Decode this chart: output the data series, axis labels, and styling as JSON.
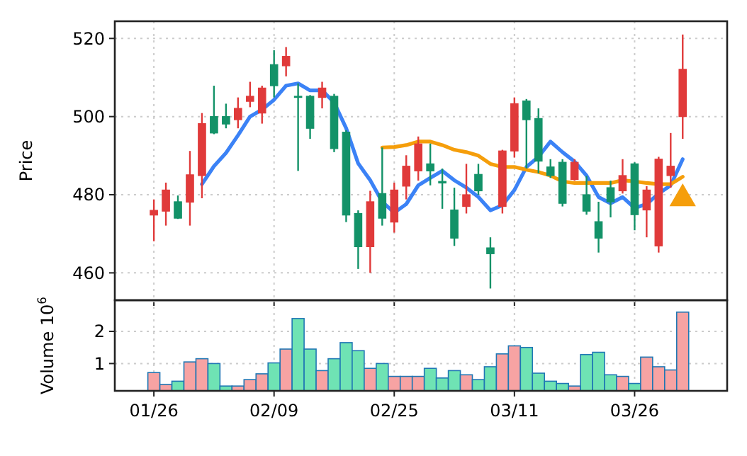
{
  "chart_data": [
    {
      "type": "candlestick",
      "ylabel": "Price",
      "tick_labels": "y",
      "grid": true,
      "ylim": [
        453,
        524.4
      ],
      "yticks": [
        460,
        480,
        500,
        520
      ],
      "categories": [
        null,
        null,
        null,
        null,
        null,
        null,
        null,
        null,
        null,
        null,
        null,
        null,
        null,
        null,
        null,
        null,
        null,
        null,
        null,
        null,
        null,
        null,
        null,
        null,
        null,
        null,
        null,
        null,
        null,
        null,
        null,
        null,
        null,
        null,
        null,
        null,
        null,
        null,
        null,
        null,
        null,
        null,
        null,
        null,
        null
      ],
      "ohlc": [
        [
          474.8,
          478.8,
          468.1,
          476.0
        ],
        [
          475.8,
          483.1,
          472.1,
          481.2
        ],
        [
          478.2,
          479.8,
          473.8,
          474.0
        ],
        [
          478.1,
          491.2,
          472.1,
          485.1
        ],
        [
          484.9,
          500.9,
          479.1,
          498.2
        ],
        [
          500.0,
          507.9,
          495.5,
          495.8
        ],
        [
          500.0,
          503.3,
          497.0,
          498.1
        ],
        [
          499.2,
          504.9,
          497.0,
          502.1
        ],
        [
          503.9,
          508.9,
          502.4,
          505.2
        ],
        [
          500.9,
          507.9,
          498.2,
          507.3
        ],
        [
          513.3,
          517.0,
          504.9,
          507.9
        ],
        [
          513.0,
          517.8,
          510.3,
          515.4
        ],
        [
          505.2,
          508.5,
          486.1,
          504.9
        ],
        [
          505.2,
          505.5,
          494.3,
          497.0
        ],
        [
          504.9,
          508.9,
          502.1,
          507.3
        ],
        [
          505.2,
          505.8,
          490.9,
          491.8
        ],
        [
          496.0,
          496.5,
          473.0,
          474.8
        ],
        [
          475.2,
          476.0,
          461.0,
          466.7
        ],
        [
          466.7,
          481.0,
          460.0,
          478.2
        ],
        [
          480.3,
          492.1,
          472.1,
          474.0
        ],
        [
          473.0,
          483.1,
          470.3,
          481.2
        ],
        [
          482.2,
          490.1,
          478.8,
          487.3
        ],
        [
          486.1,
          494.9,
          483.6,
          493.0
        ],
        [
          487.9,
          493.1,
          482.4,
          486.1
        ],
        [
          483.4,
          486.7,
          476.4,
          483.0
        ],
        [
          476.1,
          481.8,
          466.9,
          468.9
        ],
        [
          477.0,
          487.9,
          475.2,
          480.0
        ],
        [
          485.2,
          487.9,
          480.0,
          481.0
        ],
        [
          466.4,
          469.1,
          456.0,
          464.9
        ],
        [
          477.0,
          491.5,
          475.2,
          491.2
        ],
        [
          491.2,
          504.9,
          489.5,
          503.3
        ],
        [
          504.0,
          504.5,
          486.7,
          499.2
        ],
        [
          499.5,
          502.1,
          485.5,
          488.6
        ],
        [
          487.1,
          489.1,
          484.3,
          484.9
        ],
        [
          488.3,
          489.1,
          477.0,
          477.8
        ],
        [
          483.9,
          489.1,
          483.6,
          488.3
        ],
        [
          480.0,
          484.8,
          474.9,
          475.8
        ],
        [
          473.1,
          478.2,
          465.2,
          468.9
        ],
        [
          481.8,
          483.6,
          474.2,
          478.2
        ],
        [
          481.0,
          489.1,
          480.3,
          484.9
        ],
        [
          487.9,
          488.3,
          470.9,
          474.9
        ],
        [
          476.1,
          482.2,
          469.1,
          481.2
        ],
        [
          466.9,
          489.7,
          465.2,
          489.1
        ],
        [
          484.9,
          495.8,
          481.8,
          487.3
        ],
        [
          500.0,
          521.0,
          494.3,
          512.1
        ]
      ],
      "colors": [
        "#e03a3a",
        "#e03a3a",
        "#139268",
        "#e03a3a",
        "#e03a3a",
        "#139268",
        "#139268",
        "#e03a3a",
        "#e03a3a",
        "#e03a3a",
        "#139268",
        "#e03a3a",
        "#139268",
        "#139268",
        "#e03a3a",
        "#139268",
        "#139268",
        "#139268",
        "#e03a3a",
        "#139268",
        "#e03a3a",
        "#e03a3a",
        "#e03a3a",
        "#139268",
        "#139268",
        "#139268",
        "#e03a3a",
        "#139268",
        "#139268",
        "#e03a3a",
        "#e03a3a",
        "#139268",
        "#139268",
        "#139268",
        "#139268",
        "#e03a3a",
        "#139268",
        "#139268",
        "#139268",
        "#e03a3a",
        "#139268",
        "#e03a3a",
        "#e03a3a",
        "#e03a3a",
        "#e03a3a"
      ],
      "series": [
        {
          "type": "line",
          "color": "#3b82f6",
          "values": [
            null,
            null,
            null,
            null,
            482.7,
            487.3,
            490.7,
            495.2,
            500.0,
            501.8,
            504.3,
            507.9,
            508.5,
            506.7,
            506.7,
            503.6,
            497.0,
            488.0,
            483.7,
            478.2,
            475.4,
            477.6,
            482.4,
            484.3,
            486.1,
            483.7,
            481.8,
            479.4,
            476.0,
            477.3,
            481.2,
            487.1,
            489.7,
            493.6,
            490.9,
            488.5,
            484.9,
            479.4,
            477.8,
            479.4,
            476.6,
            477.6,
            480.3,
            482.4,
            489.1
          ]
        },
        {
          "type": "line",
          "color": "#f59e0b",
          "values": [
            null,
            null,
            null,
            null,
            null,
            null,
            null,
            null,
            null,
            null,
            null,
            null,
            null,
            null,
            null,
            null,
            null,
            null,
            null,
            492.1,
            492.2,
            492.7,
            493.6,
            493.6,
            492.7,
            491.5,
            490.9,
            490.0,
            487.9,
            487.1,
            487.1,
            486.4,
            485.8,
            484.9,
            483.4,
            483.0,
            483.0,
            483.0,
            483.0,
            483.7,
            483.4,
            483.0,
            482.7,
            482.7,
            484.6
          ]
        },
        {
          "type": "scatter",
          "color": "#f59e0b",
          "marker": "triangle",
          "values": [
            null,
            null,
            null,
            null,
            null,
            null,
            null,
            null,
            null,
            null,
            null,
            null,
            null,
            null,
            null,
            null,
            null,
            null,
            null,
            null,
            null,
            null,
            null,
            null,
            null,
            null,
            null,
            null,
            null,
            null,
            null,
            null,
            null,
            null,
            null,
            null,
            null,
            null,
            null,
            null,
            null,
            null,
            null,
            null,
            479
          ]
        }
      ]
    },
    {
      "type": "bar",
      "ylabel": "Volume  10$^{6}$",
      "grid": true,
      "ylim": [
        0.15,
        2.97
      ],
      "yticks": [
        1,
        2
      ],
      "categories": [
        "01/26",
        null,
        null,
        null,
        null,
        null,
        null,
        null,
        null,
        null,
        "02/09",
        null,
        null,
        null,
        null,
        null,
        null,
        null,
        null,
        null,
        "02/25",
        null,
        null,
        null,
        null,
        null,
        null,
        null,
        null,
        null,
        "03/11",
        null,
        null,
        null,
        null,
        null,
        null,
        null,
        null,
        null,
        "03/26",
        null,
        null,
        null,
        null
      ],
      "values": [
        0.72,
        0.35,
        0.45,
        1.05,
        1.15,
        1.0,
        0.3,
        0.3,
        0.5,
        0.68,
        1.02,
        1.45,
        2.4,
        1.45,
        0.78,
        1.15,
        1.65,
        1.4,
        0.85,
        1.0,
        0.6,
        0.6,
        0.6,
        0.85,
        0.55,
        0.78,
        0.65,
        0.5,
        0.9,
        1.3,
        1.55,
        1.5,
        0.7,
        0.45,
        0.38,
        0.3,
        1.28,
        1.35,
        0.65,
        0.6,
        0.38,
        1.2,
        0.9,
        0.8,
        2.6
      ],
      "colors": [
        "#f7a3a3",
        "#f7a3a3",
        "#6fe3b4",
        "#f7a3a3",
        "#f7a3a3",
        "#6fe3b4",
        "#6fe3b4",
        "#f7a3a3",
        "#f7a3a3",
        "#f7a3a3",
        "#6fe3b4",
        "#f7a3a3",
        "#6fe3b4",
        "#6fe3b4",
        "#f7a3a3",
        "#6fe3b4",
        "#6fe3b4",
        "#6fe3b4",
        "#f7a3a3",
        "#6fe3b4",
        "#f7a3a3",
        "#f7a3a3",
        "#f7a3a3",
        "#6fe3b4",
        "#6fe3b4",
        "#6fe3b4",
        "#f7a3a3",
        "#6fe3b4",
        "#6fe3b4",
        "#f7a3a3",
        "#f7a3a3",
        "#6fe3b4",
        "#6fe3b4",
        "#6fe3b4",
        "#6fe3b4",
        "#f7a3a3",
        "#6fe3b4",
        "#6fe3b4",
        "#6fe3b4",
        "#f7a3a3",
        "#6fe3b4",
        "#f7a3a3",
        "#f7a3a3",
        "#f7a3a3",
        "#f7a3a3"
      ]
    }
  ]
}
